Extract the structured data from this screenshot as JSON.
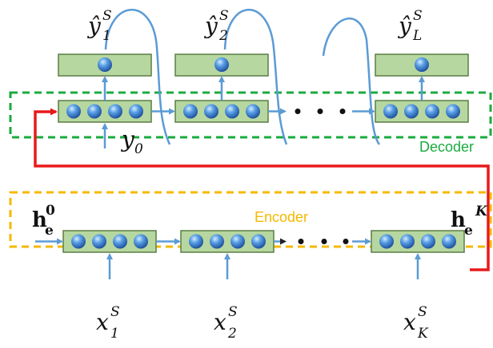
{
  "decoder": {
    "label": "Decoder",
    "color": "#1aab3e",
    "outputs": [
      {
        "base": "ŷ",
        "sub": "1",
        "sup": "S"
      },
      {
        "base": "ŷ",
        "sub": "2",
        "sup": "S"
      },
      {
        "base": "ŷ",
        "sub": "L",
        "sup": "S"
      }
    ],
    "input": {
      "base": "y",
      "sub": "0"
    }
  },
  "encoder": {
    "label": "Encoder",
    "color": "#f5b800",
    "inputs": [
      {
        "base": "x",
        "sub": "1",
        "sup": "S"
      },
      {
        "base": "x",
        "sub": "2",
        "sup": "S"
      },
      {
        "base": "x",
        "sub": "K",
        "sup": "S"
      }
    ],
    "initial_state": {
      "base": "h",
      "sub": "e",
      "sup": "0"
    },
    "final_state": {
      "base": "h",
      "sub": "e",
      "sup": "K"
    }
  },
  "colors": {
    "cell_fill": "#b7d7a0",
    "cell_border": "#5a7e45",
    "arrow": "#5b9bd5",
    "context_link": "#e8191a"
  }
}
